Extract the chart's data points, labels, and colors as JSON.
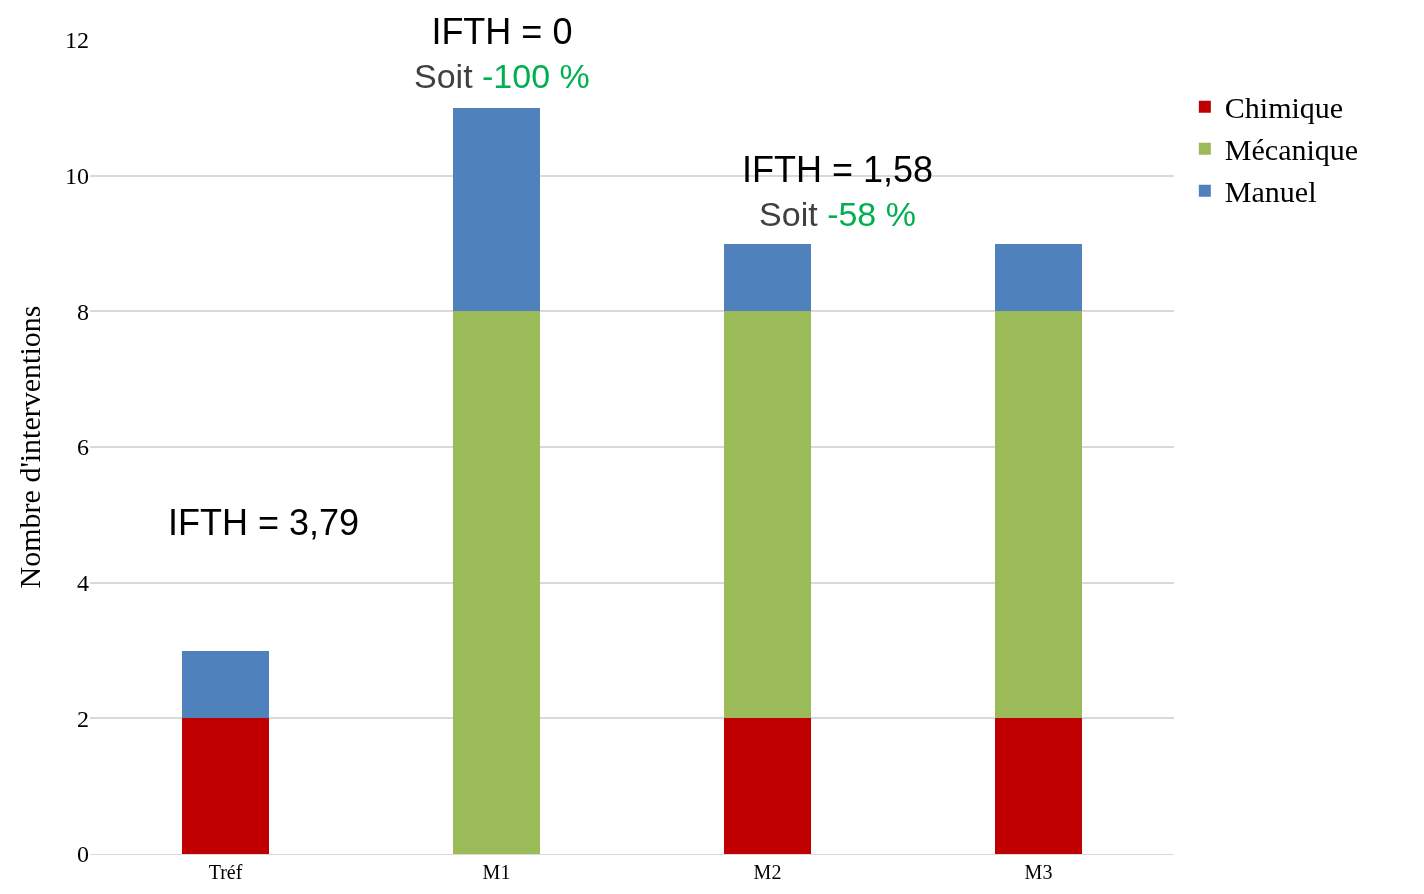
{
  "chart_data": {
    "type": "bar",
    "stacked": true,
    "ylabel": "Nombre d'interventions",
    "categories": [
      "Tréf",
      "M1",
      "M2",
      "M3"
    ],
    "series": [
      {
        "name": "Chimique",
        "color": "#c00000",
        "values": [
          2,
          0,
          2,
          2
        ]
      },
      {
        "name": "Mécanique",
        "color": "#9bbb59",
        "values": [
          0,
          8,
          6,
          6
        ]
      },
      {
        "name": "Manuel",
        "color": "#4f81bd",
        "values": [
          1,
          3,
          1,
          1
        ]
      }
    ],
    "ylim": [
      0,
      12
    ],
    "yticks": [
      0,
      2,
      4,
      6,
      8,
      10,
      12
    ],
    "grid": "y",
    "legend": "right",
    "annotations": [
      "IFTH = 3,79",
      "IFTH = 0\nSoit -100 %",
      "IFTH = 1,58\nSoit -58 %"
    ]
  }
}
